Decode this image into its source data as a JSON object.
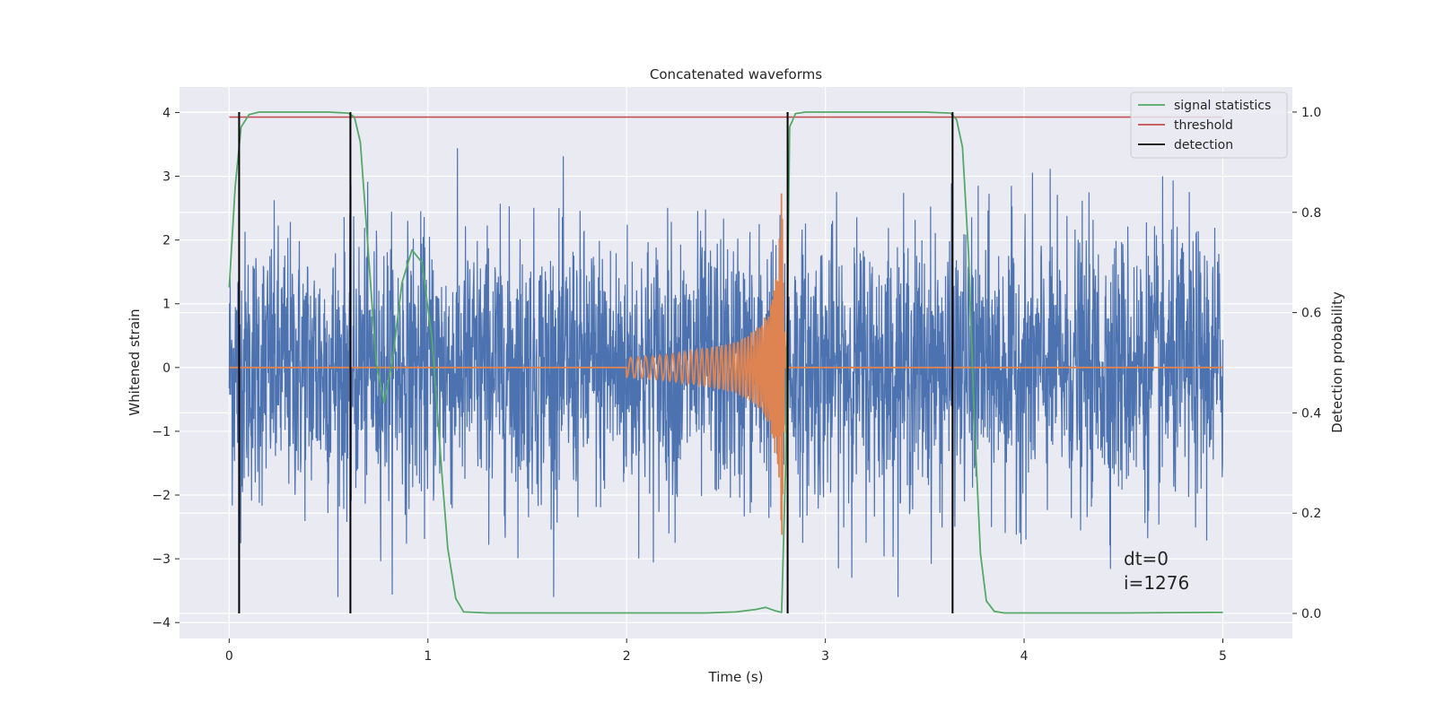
{
  "chart_data": {
    "type": "line",
    "title": "Concatenated waveforms",
    "xlabel": "Time (s)",
    "ylabel": "Whitened strain",
    "ylabel_right": "Detection probability",
    "xlim": [
      -0.25,
      5.35
    ],
    "ylim": [
      -4.25,
      4.4
    ],
    "ylim_right": [
      -0.05,
      1.05
    ],
    "x_ticks": [
      0,
      1,
      2,
      3,
      4,
      5
    ],
    "y_ticks": [
      -4,
      -3,
      -2,
      -1,
      0,
      1,
      2,
      3,
      4
    ],
    "y_ticks_right": [
      0.0,
      0.2,
      0.4,
      0.6,
      0.8,
      1.0
    ],
    "grid": true,
    "legend_position": "top-right",
    "colors": {
      "strain": "#4c72b0",
      "injection": "#dd8452",
      "signal_statistics": "#55a868",
      "threshold": "#c44e52",
      "detection": "#000000",
      "background": "#eaeaf2"
    },
    "series": [
      {
        "name": "",
        "role": "strain",
        "axis": "left",
        "x_range": [
          0,
          5
        ],
        "description": "whitened noise, amplitude mostly within ±2.5, peaks to about ±3.5"
      },
      {
        "name": "",
        "role": "injection",
        "axis": "left",
        "x": [
          0,
          2.0,
          2.2,
          2.4,
          2.55,
          2.65,
          2.72,
          2.76,
          2.78,
          2.8,
          5.0
        ],
        "envelope": [
          0,
          0.15,
          0.2,
          0.3,
          0.4,
          0.6,
          0.9,
          1.6,
          2.8,
          0,
          0
        ]
      },
      {
        "name": "signal statistics",
        "role": "signal_statistics",
        "axis": "right",
        "x": [
          0.0,
          0.03,
          0.06,
          0.1,
          0.15,
          0.3,
          0.5,
          0.6,
          0.63,
          0.66,
          0.7,
          0.74,
          0.78,
          0.82,
          0.87,
          0.92,
          0.97,
          1.02,
          1.07,
          1.1,
          1.14,
          1.18,
          1.3,
          2.0,
          2.4,
          2.55,
          2.65,
          2.7,
          2.75,
          2.78,
          2.8,
          2.82,
          2.85,
          2.9,
          3.0,
          3.2,
          3.5,
          3.63,
          3.66,
          3.69,
          3.72,
          3.75,
          3.78,
          3.81,
          3.85,
          3.9,
          4.5,
          5.0
        ],
        "y": [
          0.65,
          0.85,
          0.97,
          0.995,
          1.0,
          1.0,
          1.0,
          0.998,
          0.99,
          0.94,
          0.72,
          0.5,
          0.42,
          0.5,
          0.66,
          0.725,
          0.7,
          0.55,
          0.28,
          0.13,
          0.03,
          0.003,
          0.001,
          0.001,
          0.001,
          0.003,
          0.008,
          0.012,
          0.005,
          0.002,
          0.3,
          0.97,
          0.997,
          1.0,
          1.0,
          1.0,
          1.0,
          0.998,
          0.985,
          0.93,
          0.72,
          0.38,
          0.12,
          0.025,
          0.004,
          0.001,
          0.001,
          0.002
        ]
      },
      {
        "name": "threshold",
        "role": "threshold",
        "axis": "right",
        "x": [
          0,
          5
        ],
        "y": [
          0.99,
          0.99
        ]
      },
      {
        "name": "detection",
        "role": "detection",
        "axis": "right",
        "x": [
          0.05,
          0.61,
          2.81,
          3.64
        ],
        "y_range": [
          0,
          1
        ]
      }
    ],
    "annotations": [
      "dt=0",
      "i=1276"
    ]
  }
}
